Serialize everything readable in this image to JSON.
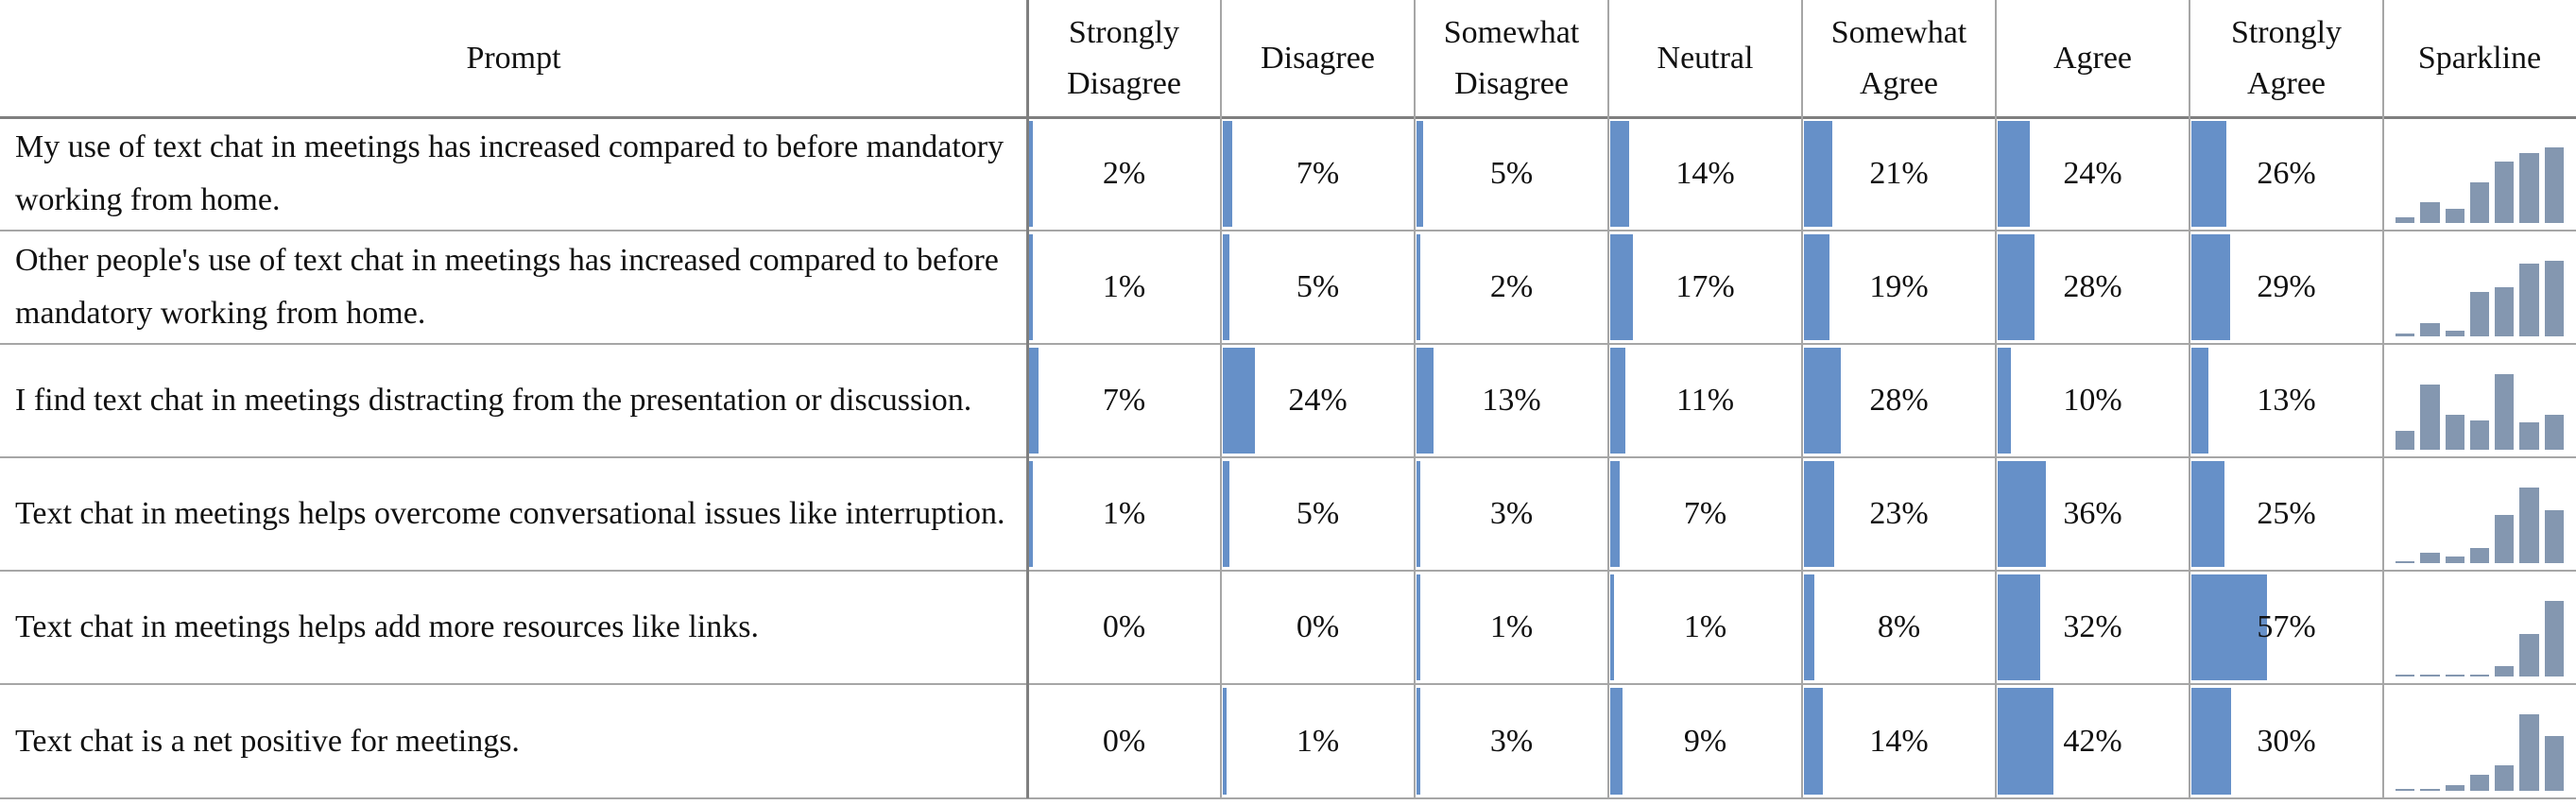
{
  "chart_data": {
    "type": "table",
    "columns": [
      "Prompt",
      "Strongly\nDisagree",
      "Disagree",
      "Somewhat\nDisagree",
      "Neutral",
      "Somewhat\nAgree",
      "Agree",
      "Strongly\nAgree",
      "Sparkline"
    ],
    "rows": [
      {
        "prompt": "My use of text chat in meetings has increased compared to before mandatory working from home.",
        "values": [
          2,
          7,
          5,
          14,
          21,
          24,
          26
        ],
        "labels": [
          "2%",
          "7%",
          "5%",
          "14%",
          "21%",
          "24%",
          "26%"
        ]
      },
      {
        "prompt": "Other people's use of text chat in meetings has increased compared to before mandatory working from home.",
        "values": [
          1,
          5,
          2,
          17,
          19,
          28,
          29
        ],
        "labels": [
          "1%",
          "5%",
          "2%",
          "17%",
          "19%",
          "28%",
          "29%"
        ]
      },
      {
        "prompt": "I find text chat in meetings distracting from the presentation or discussion.",
        "values": [
          7,
          24,
          13,
          11,
          28,
          10,
          13
        ],
        "labels": [
          "7%",
          "24%",
          "13%",
          "11%",
          "28%",
          "10%",
          "13%"
        ]
      },
      {
        "prompt": "Text chat in meetings helps overcome conversational issues like interruption.",
        "values": [
          1,
          5,
          3,
          7,
          23,
          36,
          25
        ],
        "labels": [
          "1%",
          "5%",
          "3%",
          "7%",
          "23%",
          "36%",
          "25%"
        ]
      },
      {
        "prompt": "Text chat in meetings helps add more resources like links.",
        "values": [
          0,
          0,
          1,
          1,
          8,
          32,
          57
        ],
        "labels": [
          "0%",
          "0%",
          "1%",
          "1%",
          "8%",
          "32%",
          "57%"
        ]
      },
      {
        "prompt": "Text chat is a net positive for meetings.",
        "values": [
          0,
          1,
          3,
          9,
          14,
          42,
          30
        ],
        "labels": [
          "0%",
          "1%",
          "3%",
          "9%",
          "14%",
          "42%",
          "30%"
        ]
      }
    ],
    "bar_max": 100,
    "bar_color": "#6690c8",
    "spark_color": "#8497b0",
    "grid": true
  }
}
